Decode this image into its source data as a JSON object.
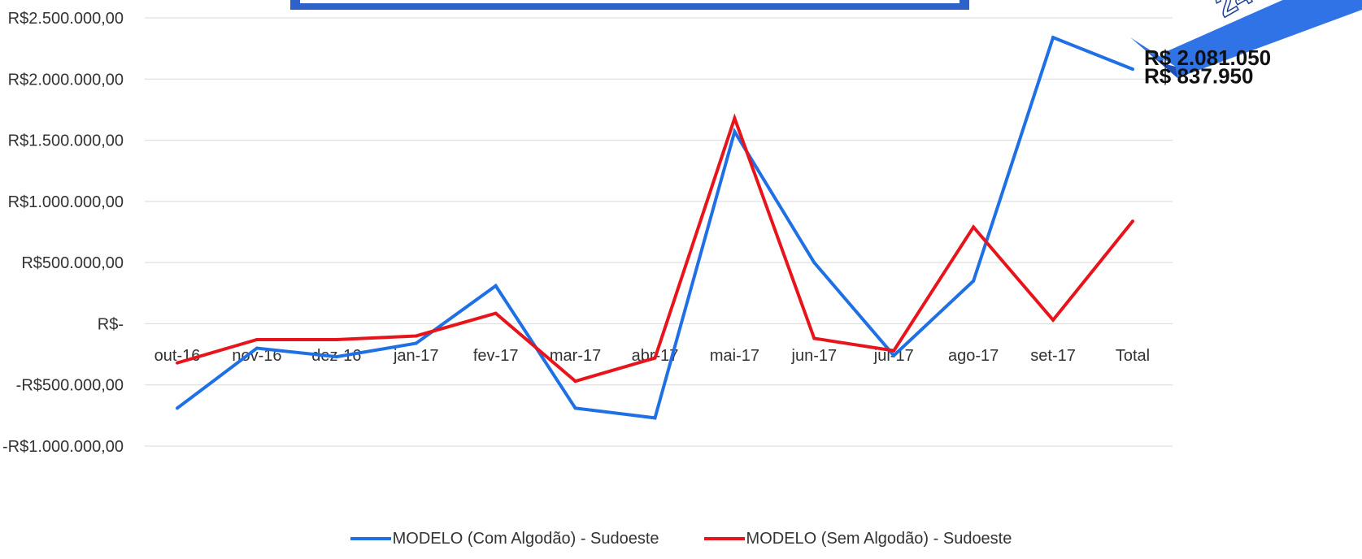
{
  "chart_data": {
    "type": "line",
    "categories": [
      "out-16",
      "nov-16",
      "dez-16",
      "jan-17",
      "fev-17",
      "mar-17",
      "abr-17",
      "mai-17",
      "jun-17",
      "jul-17",
      "ago-17",
      "set-17",
      "Total"
    ],
    "y_ticks": [
      "R$2.500.000,00",
      "R$2.000.000,00",
      "R$1.500.000,00",
      "R$1.000.000,00",
      "R$500.000,00",
      "R$-",
      "-R$500.000,00",
      "-R$1.000.000,00"
    ],
    "y_tick_values": [
      2500000,
      2000000,
      1500000,
      1000000,
      500000,
      0,
      -500000,
      -1000000
    ],
    "ylim": [
      -1000000,
      2500000
    ],
    "grid": true,
    "legend_position": "bottom",
    "series": [
      {
        "name": "MODELO (Com Algodão) - Sudoeste",
        "color": "#1f6fe5",
        "values": [
          -690000,
          -200000,
          -270000,
          -160000,
          310000,
          -690000,
          -770000,
          1570000,
          500000,
          -260000,
          350000,
          2340000,
          2081050
        ]
      },
      {
        "name": "MODELO (Sem Algodão) - Sudoeste",
        "color": "#e8141b",
        "values": [
          -320000,
          -130000,
          -130000,
          -100000,
          85000,
          -470000,
          -280000,
          1680000,
          -120000,
          -220000,
          790000,
          30000,
          837950
        ]
      }
    ],
    "annotations": [
      {
        "text": "R$ 2.081.050",
        "series": 0,
        "category": "Total"
      },
      {
        "text": "R$ 837.950",
        "series": 1,
        "category": "Total"
      }
    ]
  }
}
